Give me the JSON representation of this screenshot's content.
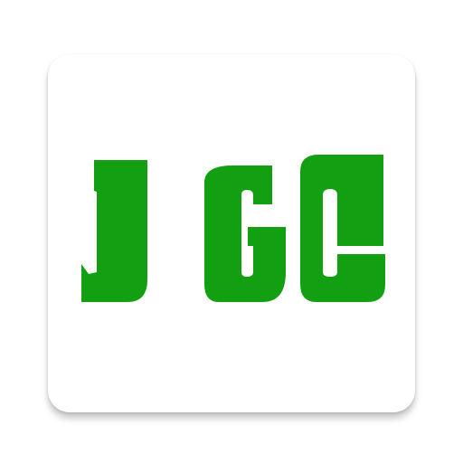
{
  "app_icon": {
    "logo_text": "JGC",
    "brand_color": "#12a012",
    "tile_color": "#ffffff",
    "icon": "app-logo-icon"
  }
}
